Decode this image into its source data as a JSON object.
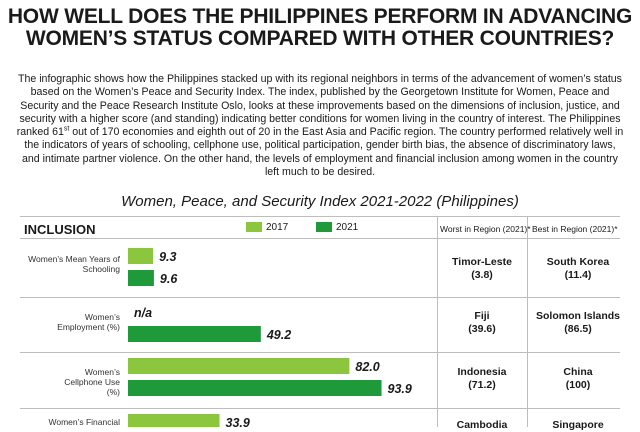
{
  "headline": "HOW WELL DOES THE PHILIPPINES PERFORM IN ADVANCING WOMEN’S STATUS COMPARED WITH OTHER COUNTRIES?",
  "intro": {
    "part1": "The infographic shows how the Philippines stacked up with its regional neighbors in terms of the advancement of women’s status based on the Women’s Peace and Security Index. The index, published by the Georgetown Institute for Women, Peace and Security and the Peace Research Institute Oslo, looks at these improvements based on the dimensions of inclusion, justice, and security with a higher score (and standing) indicating better conditions for women living in the country of interest. The Philippines ranked 61",
    "sup": "st",
    "part2": " out of 170 economies and eighth out of 20 in the East Asia and Pacific region. The country performed relatively well in the indicators of years of schooling, cellphone use, political participation, gender birth bias, the absence of discriminatory laws, and intimate partner violence. On the other hand, the levels of employment and financial inclusion among women in the country left much to be desired."
  },
  "subtitle": "Women, Peace, and Security Index 2021-2022 (Philippines)",
  "section": "INCLUSION",
  "legend": [
    {
      "label": "2017",
      "color": "#8cc63f"
    },
    {
      "label": "2021",
      "color": "#1f9a3a"
    }
  ],
  "col_worst": "Worst in Region (2021)*",
  "col_best": "Best in Region (2021)*",
  "chart_data": {
    "type": "bar",
    "orientation": "horizontal",
    "title": "Women, Peace, and Security Index 2021-2022 (Philippines)",
    "section": "INCLUSION",
    "series_names": [
      "2017",
      "2021"
    ],
    "rows": [
      {
        "label": "Women’s Mean Years of Schooling",
        "v2017": 9.3,
        "l2017": "9.3",
        "v2021": 9.6,
        "l2021": "9.6",
        "worst_country": "Timor-Leste",
        "worst_value": "(3.8)",
        "best_country": "South Korea",
        "best_value": "(11.4)"
      },
      {
        "label": "Women’s Employment (%)",
        "v2017": null,
        "l2017": "n/a",
        "v2021": 49.2,
        "l2021": "49.2",
        "worst_country": "Fiji",
        "worst_value": "(39.6)",
        "best_country": "Solomon Islands",
        "best_value": "(86.5)"
      },
      {
        "label": "Women’s Cellphone Use (%)",
        "v2017": 82.0,
        "l2017": "82.0",
        "v2021": 93.9,
        "l2021": "93.9",
        "worst_country": "Indonesia",
        "worst_value": "(71.2)",
        "best_country": "China",
        "best_value": "(100)"
      },
      {
        "label": "Women’s Financial",
        "v2017": 33.9,
        "l2017": "33.9",
        "v2021": null,
        "l2021": "",
        "worst_country": "Cambodia",
        "worst_value": "",
        "best_country": "Singapore",
        "best_value": ""
      }
    ]
  }
}
